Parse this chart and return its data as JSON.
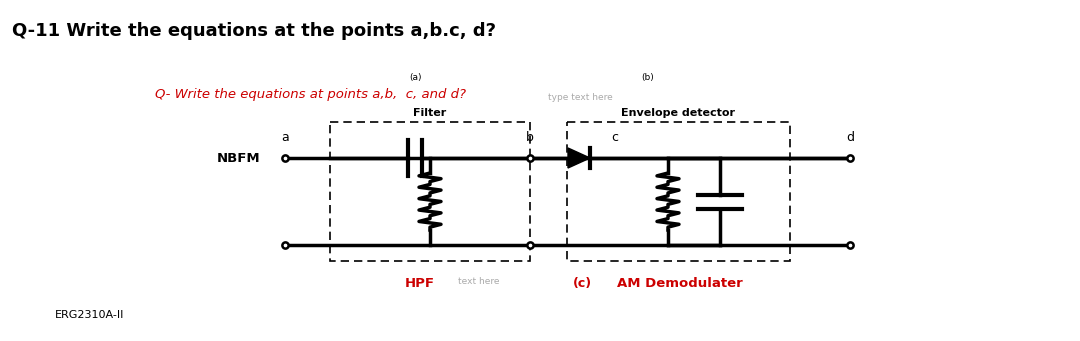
{
  "title": "Q-11 Write the equations at the points a,b.c, d?",
  "title_fontsize": 13,
  "title_color": "#000000",
  "red_question": "Q- Write the equations at points a,b,  c, and d?",
  "red_question_color": "#cc0000",
  "red_question_fontsize": 9.5,
  "label_a": "a",
  "label_b": "b",
  "label_c": "c",
  "label_d": "d",
  "label_a_note": "(a)",
  "label_b_note": "(b)",
  "label_c_note": "(c)",
  "nbfm_label": "NBFM",
  "filter_label": "Filter",
  "envelope_label": "Envelope detector",
  "hpf_label": "HPF",
  "hpf_text": "text here",
  "am_label": "AM Demodulater",
  "erg_label": "ERG2310A-II",
  "type_text": "type text here",
  "background_color": "#ffffff",
  "circuit_color": "#000000",
  "red_color": "#cc0000",
  "gray_text_color": "#aaaaaa"
}
